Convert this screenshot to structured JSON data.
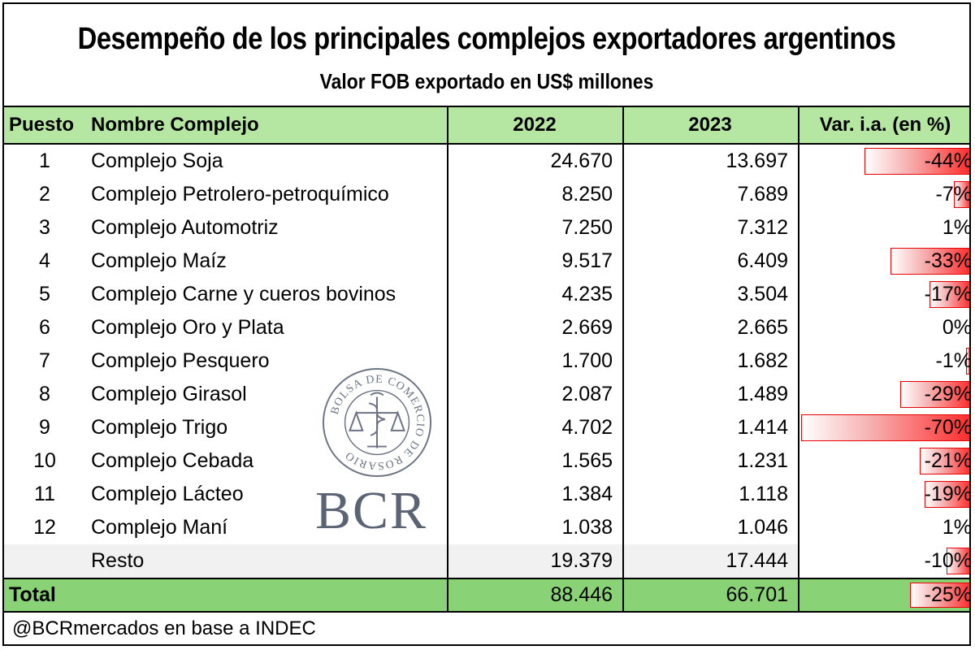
{
  "chart_data": {
    "type": "table",
    "title": "Desempeño de los principales complejos exportadores argentinos",
    "subtitle": "Valor FOB exportado en US$ millones",
    "columns": [
      "Puesto",
      "Nombre Complejo",
      "2022",
      "2023",
      "Var. i.a. (en %)"
    ],
    "rows": [
      {
        "rank": "1",
        "name": "Complejo Soja",
        "v2022": "24.670",
        "v2023": "13.697",
        "var_label": "-44%",
        "var": -44
      },
      {
        "rank": "2",
        "name": "Complejo Petrolero-petroquímico",
        "v2022": "8.250",
        "v2023": "7.689",
        "var_label": "-7%",
        "var": -7
      },
      {
        "rank": "3",
        "name": "Complejo Automotriz",
        "v2022": "7.250",
        "v2023": "7.312",
        "var_label": "1%",
        "var": 1
      },
      {
        "rank": "4",
        "name": "Complejo Maíz",
        "v2022": "9.517",
        "v2023": "6.409",
        "var_label": "-33%",
        "var": -33
      },
      {
        "rank": "5",
        "name": "Complejo Carne y cueros bovinos",
        "v2022": "4.235",
        "v2023": "3.504",
        "var_label": "-17%",
        "var": -17
      },
      {
        "rank": "6",
        "name": "Complejo Oro y Plata",
        "v2022": "2.669",
        "v2023": "2.665",
        "var_label": "0%",
        "var": 0
      },
      {
        "rank": "7",
        "name": "Complejo Pesquero",
        "v2022": "1.700",
        "v2023": "1.682",
        "var_label": "-1%",
        "var": -1
      },
      {
        "rank": "8",
        "name": "Complejo Girasol",
        "v2022": "2.087",
        "v2023": "1.489",
        "var_label": "-29%",
        "var": -29
      },
      {
        "rank": "9",
        "name": "Complejo Trigo",
        "v2022": "4.702",
        "v2023": "1.414",
        "var_label": "-70%",
        "var": -70
      },
      {
        "rank": "10",
        "name": "Complejo Cebada",
        "v2022": "1.565",
        "v2023": "1.231",
        "var_label": "-21%",
        "var": -21
      },
      {
        "rank": "11",
        "name": "Complejo Lácteo",
        "v2022": "1.384",
        "v2023": "1.118",
        "var_label": "-19%",
        "var": -19
      },
      {
        "rank": "12",
        "name": "Complejo Maní",
        "v2022": "1.038",
        "v2023": "1.046",
        "var_label": "1%",
        "var": 1
      }
    ],
    "rest": {
      "rank": "",
      "name": "Resto",
      "v2022": "19.379",
      "v2023": "17.444",
      "var_label": "-10%",
      "var": -10
    },
    "total": {
      "label": "Total",
      "v2022": "88.446",
      "v2023": "66.701",
      "var_label": "-25%",
      "var": -25
    },
    "var_bar_max_abs": 70,
    "source": "@BCRmercados en base a INDEC"
  },
  "logo": {
    "seal_text": "BOLSA DE COMERCIO DE ROSARIO",
    "wordmark": "BCR",
    "color": "#5b6474"
  },
  "colors": {
    "header_bg": "#b5e6a2",
    "total_bg": "#89d275",
    "rest_bg": "#f1f1f1",
    "bar_red": "#ff2d2d"
  }
}
